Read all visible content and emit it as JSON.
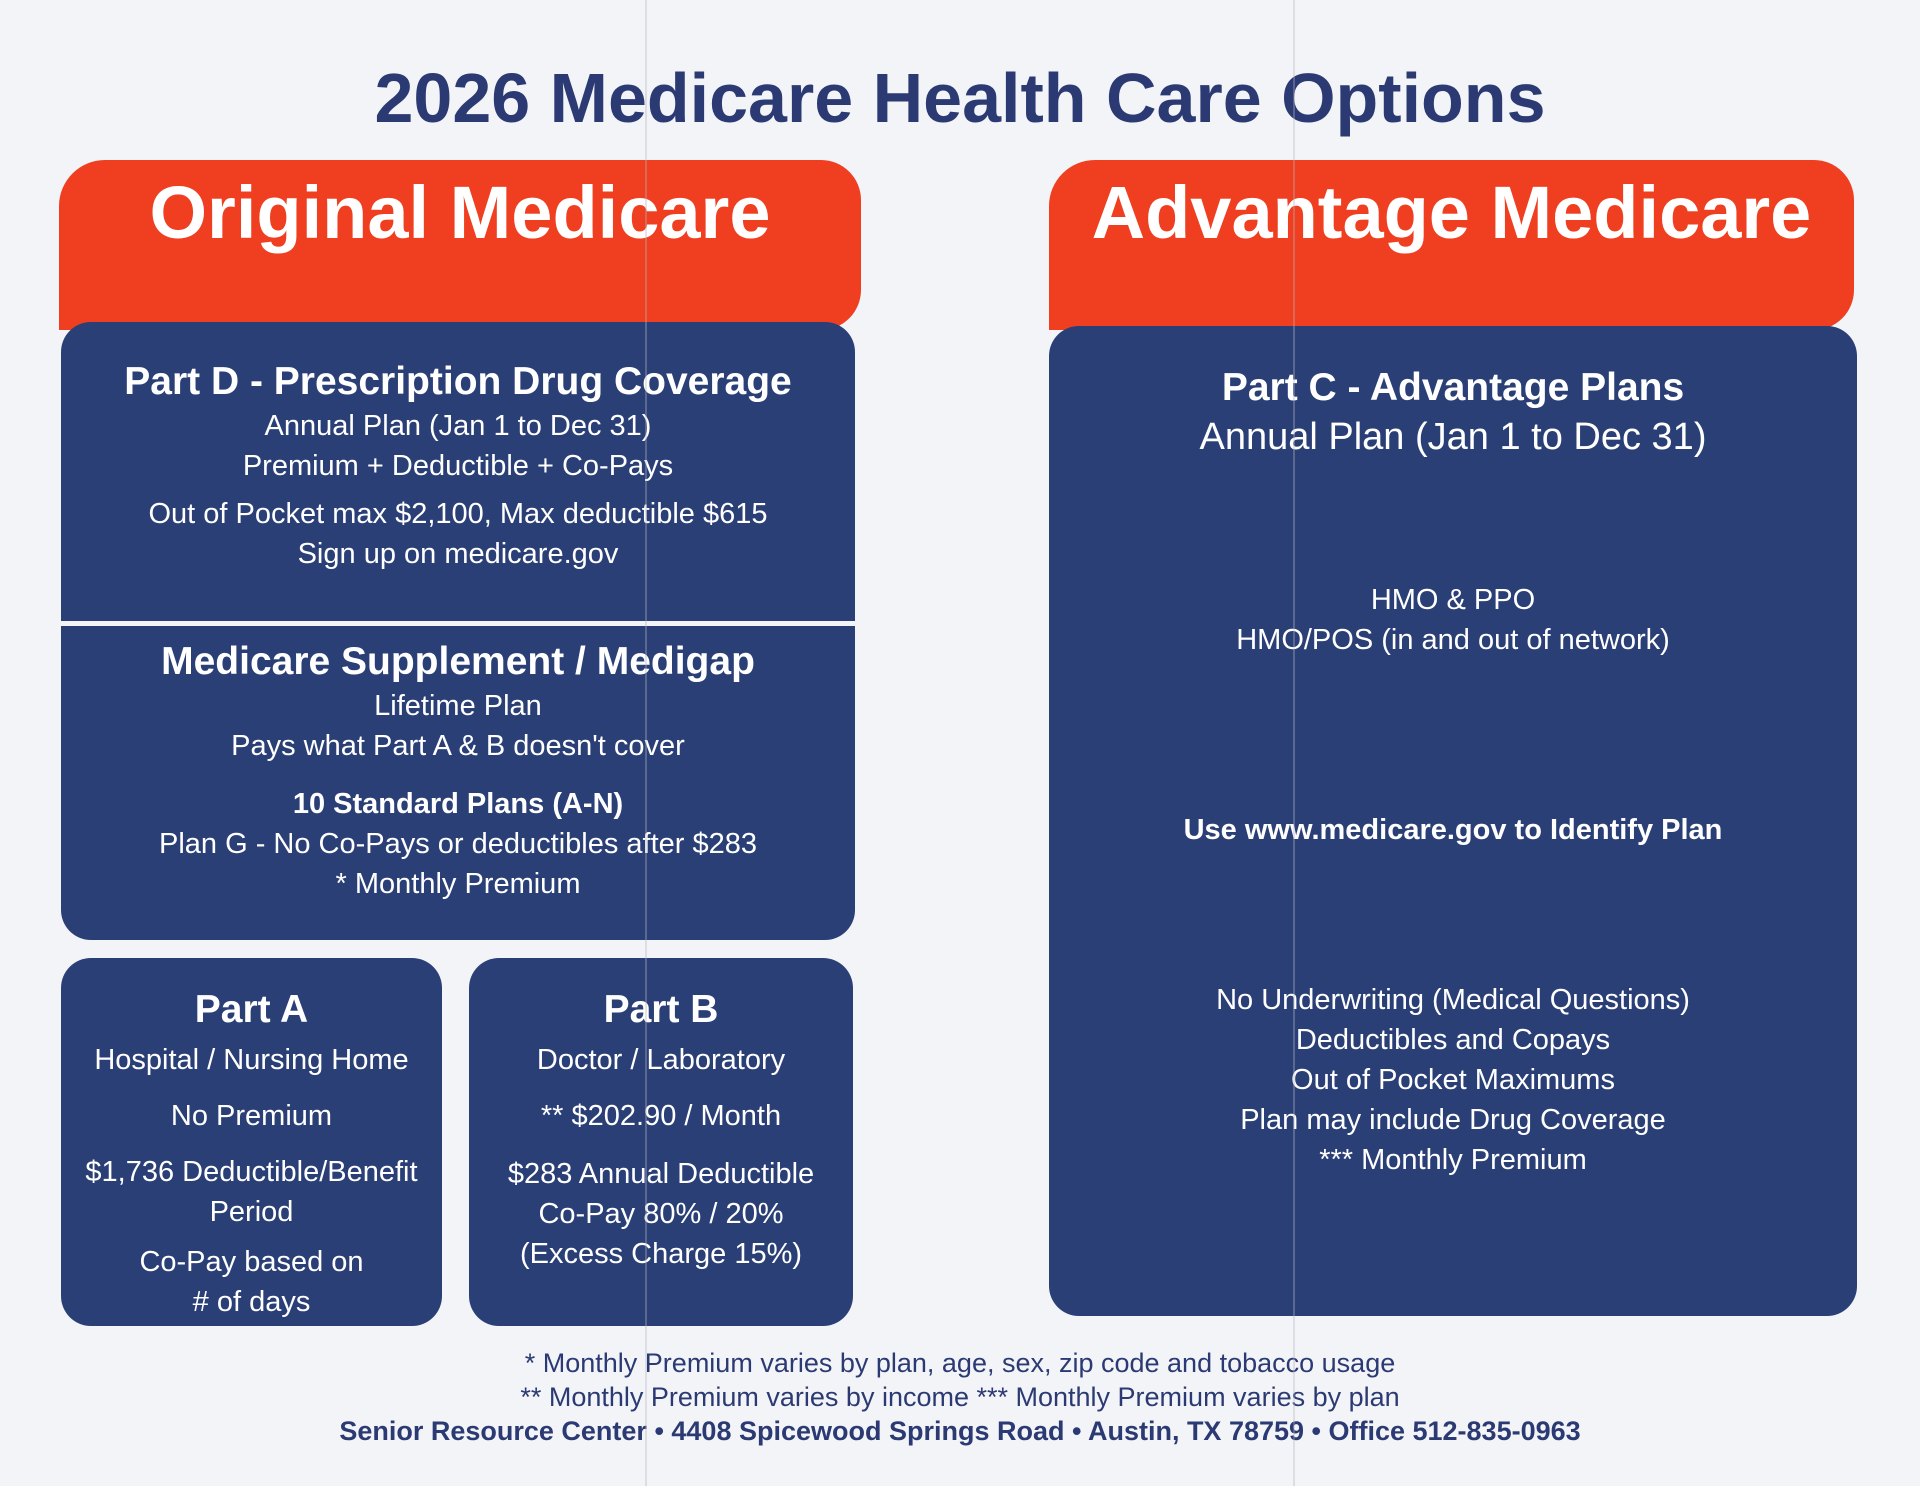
{
  "title": "2026 Medicare Health Care Options",
  "colors": {
    "red": "#ef3f20",
    "blue": "#2b3f77",
    "title": "#2b3a72"
  },
  "original": {
    "header": "Original Medicare",
    "part_d": {
      "heading": "Part D - Prescription Drug Coverage",
      "lines": [
        "Annual Plan (Jan 1 to Dec 31)",
        "Premium + Deductible + Co-Pays",
        "Out of Pocket max $2,100, Max deductible $615",
        "Sign up on medicare.gov"
      ]
    },
    "medigap": {
      "heading": "Medicare Supplement / Medigap",
      "lines": [
        "Lifetime Plan",
        "Pays what Part A & B doesn't cover"
      ],
      "subheading": "10 Standard Plans (A-N)",
      "lines2": [
        "Plan G - No Co-Pays or deductibles after $283",
        "* Monthly Premium"
      ]
    },
    "part_a": {
      "heading": "Part A",
      "lines": [
        "Hospital / Nursing Home",
        "No Premium",
        "$1,736 Deductible/Benefit",
        "Period",
        "Co-Pay based on",
        "# of days"
      ]
    },
    "part_b": {
      "heading": "Part B",
      "lines": [
        "Doctor / Laboratory",
        "** $202.90 / Month",
        "$283 Annual Deductible",
        "Co-Pay 80% / 20%",
        "(Excess Charge 15%)"
      ]
    }
  },
  "advantage": {
    "header": "Advantage Medicare",
    "heading": "Part C - Advantage Plans",
    "subheading": "Annual Plan (Jan 1 to Dec 31)",
    "types": [
      "HMO & PPO",
      "HMO/POS (in and out of network)"
    ],
    "identify": "Use www.medicare.gov to Identify Plan",
    "features": [
      "No Underwriting (Medical Questions)",
      "Deductibles and Copays",
      "Out of Pocket Maximums",
      "Plan may include Drug Coverage",
      "*** Monthly Premium"
    ]
  },
  "footer": {
    "note1": "* Monthly Premium varies by plan, age, sex, zip code and tobacco usage",
    "note2": "** Monthly Premium varies by income *** Monthly Premium varies by plan",
    "contact": "Senior Resource Center • 4408 Spicewood Springs Road • Austin, TX 78759 • Office 512-835-0963"
  }
}
